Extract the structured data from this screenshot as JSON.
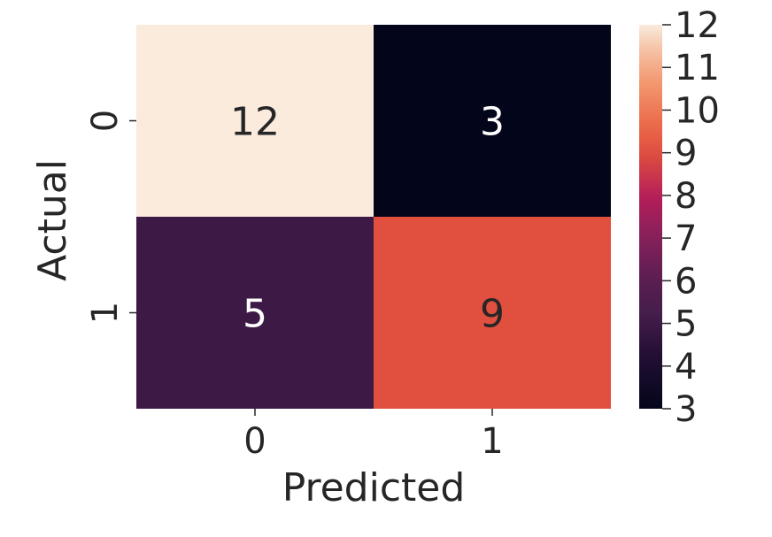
{
  "chart_data": {
    "type": "heatmap",
    "x_categories": [
      "0",
      "1"
    ],
    "y_categories": [
      "0",
      "1"
    ],
    "values": [
      [
        12,
        3
      ],
      [
        5,
        9
      ]
    ],
    "xlabel": "Predicted",
    "ylabel": "Actual",
    "annotations": true,
    "colorbar": {
      "min": 3,
      "max": 12,
      "ticks": [
        3,
        4,
        5,
        6,
        7,
        8,
        9,
        10,
        11,
        12
      ],
      "colormap": "rocket"
    }
  }
}
